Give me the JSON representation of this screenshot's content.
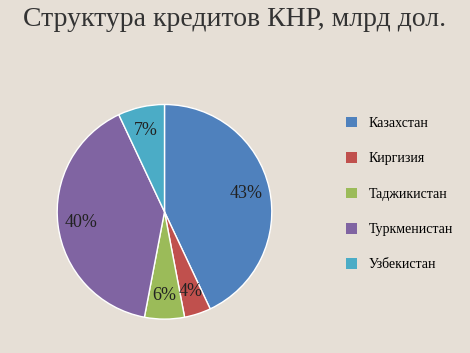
{
  "chart_data": {
    "type": "pie",
    "title": "Структура кредитов КНР, млрд дол.",
    "categories": [
      "Казахстан",
      "Киргизия",
      "Таджикистан",
      "Туркменистан",
      "Узбекистан"
    ],
    "values": [
      43,
      4,
      6,
      40,
      7
    ],
    "value_labels": [
      "43%",
      "4%",
      "6%",
      "40%",
      "7%"
    ],
    "colors": [
      "#4f81bd",
      "#c0504d",
      "#9bbb59",
      "#8064a2",
      "#4bacc6"
    ],
    "data_labels": true,
    "legend": "right"
  }
}
